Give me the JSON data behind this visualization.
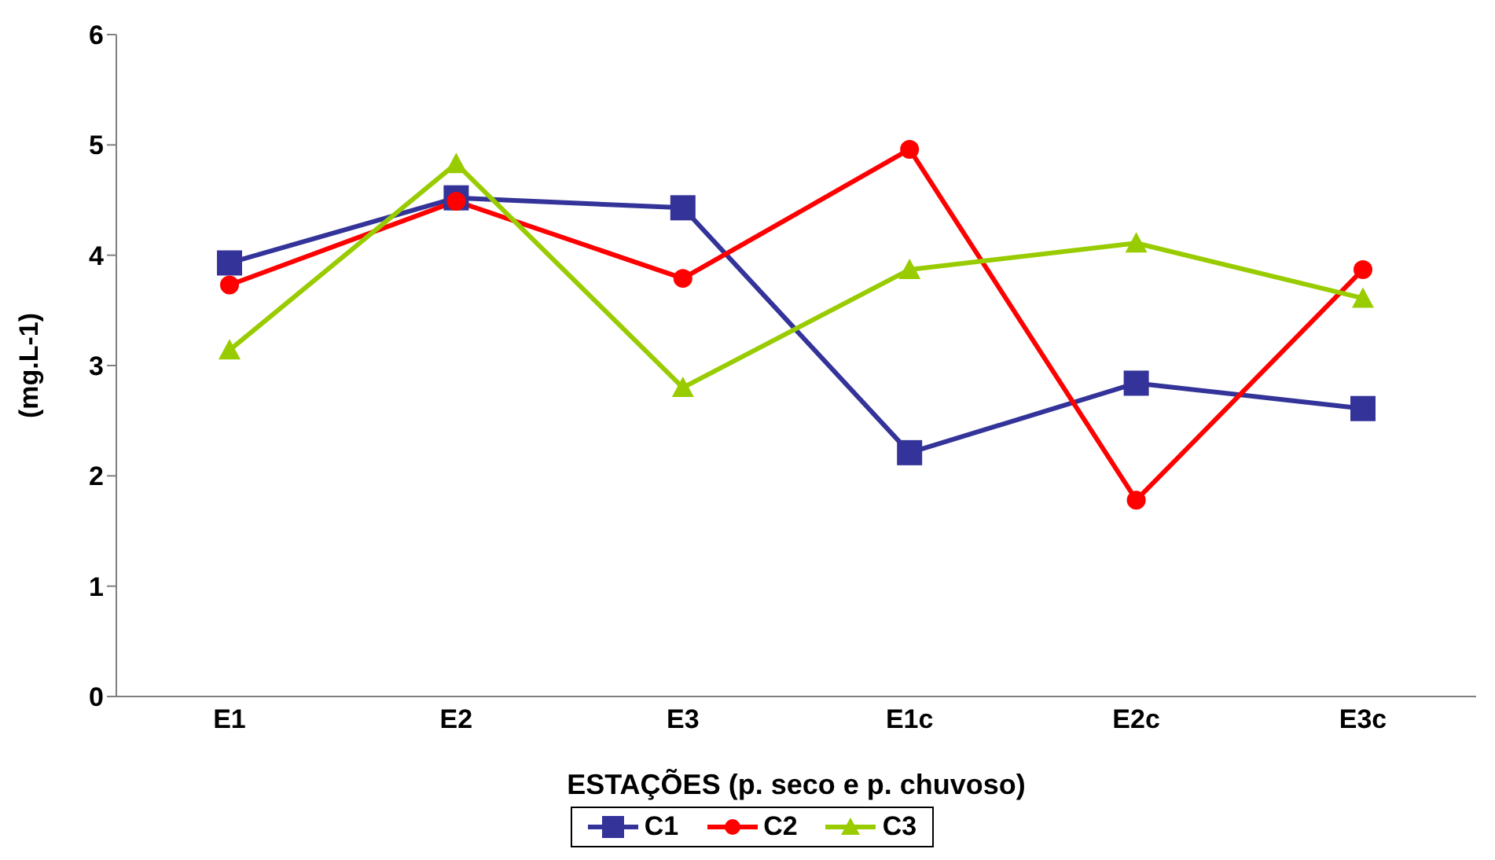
{
  "chart_data": {
    "type": "line",
    "xlabel": "ESTAÇÕES  (p. seco e p. chuvoso)",
    "ylabel": "(mg.L-1)",
    "categories": [
      "E1",
      "E2",
      "E3",
      "E1c",
      "E2c",
      "E3c"
    ],
    "series": [
      {
        "name": "C1",
        "color": "#333399",
        "marker": "square",
        "values": [
          3.93,
          4.52,
          4.43,
          2.21,
          2.84,
          2.61
        ]
      },
      {
        "name": "C2",
        "color": "#ff0000",
        "marker": "circle",
        "values": [
          3.73,
          4.49,
          3.79,
          4.96,
          1.78,
          3.87
        ]
      },
      {
        "name": "C3",
        "color": "#99cc00",
        "marker": "triangle",
        "values": [
          3.14,
          4.83,
          2.8,
          3.87,
          4.11,
          3.61
        ]
      }
    ],
    "ylim": [
      0,
      6
    ],
    "yticks": [
      0,
      1,
      2,
      3,
      4,
      5,
      6
    ],
    "grid": false,
    "legend": "bottom"
  }
}
